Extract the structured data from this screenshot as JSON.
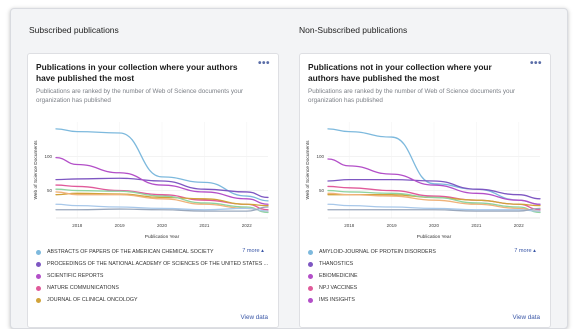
{
  "left": {
    "section_title": "Subscribed publications",
    "card": {
      "title": "Publications in your collection where your authors have published the most",
      "subtitle": "Publications are ranked by the number of Web of Science documents your organization has published",
      "more_label": "7 more ▴",
      "view_data_label": "View data",
      "legend": [
        {
          "label": "ABSTRACTS OF PAPERS OF THE AMERICAN CHEMICAL SOCIETY",
          "color": "#7db9dd"
        },
        {
          "label": "PROCEEDINGS OF THE NATIONAL ACADEMY OF SCIENCES OF THE UNITED STATES ...",
          "color": "#7e57c2"
        },
        {
          "label": "SCIENTIFIC REPORTS",
          "color": "#b34fc8"
        },
        {
          "label": "NATURE COMMUNICATIONS",
          "color": "#e05a9a"
        },
        {
          "label": "JOURNAL OF CLINICAL ONCOLOGY",
          "color": "#d1a33a"
        }
      ]
    }
  },
  "right": {
    "section_title": "Non-Subscribed publications",
    "card": {
      "title": "Publications not in your collection where your authors have published the most",
      "subtitle": "Publications are ranked by the number of Web of Science documents your organization has published",
      "more_label": "7 more ▴",
      "view_data_label": "View data",
      "legend": [
        {
          "label": "AMYLOID-JOURNAL OF PROTEIN DISORDERS",
          "color": "#7db9dd"
        },
        {
          "label": "THANOSTICS",
          "color": "#7e57c2"
        },
        {
          "label": "EBIOMEDICINE",
          "color": "#b34fc8"
        },
        {
          "label": "NPJ VACCINES",
          "color": "#e05a9a"
        },
        {
          "label": "IMS INSIGHTS",
          "color": "#b34fc8"
        }
      ]
    }
  },
  "chart_data": [
    {
      "type": "line",
      "xlabel": "Publication Year",
      "ylabel": "Web of Science Documents",
      "x": [
        2017.5,
        2018,
        2019,
        2020,
        2021,
        2022,
        2022.5
      ],
      "x_ticks": [
        "2018",
        "2019",
        "2020",
        "2021",
        "2022"
      ],
      "x_tick_values": [
        2018,
        2019,
        2020,
        2021,
        2022
      ],
      "y_ticks": [
        50,
        100
      ],
      "ylim": [
        10,
        150
      ],
      "series": [
        {
          "color": "#7db9dd",
          "values": [
            140,
            136,
            134,
            70,
            62,
            42,
            35
          ]
        },
        {
          "color": "#7e57c2",
          "values": [
            66,
            67,
            68,
            64,
            52,
            48,
            40
          ]
        },
        {
          "color": "#b34fc8",
          "values": [
            98,
            88,
            76,
            58,
            48,
            38,
            30
          ]
        },
        {
          "color": "#e05a9a",
          "values": [
            58,
            56,
            50,
            44,
            36,
            30,
            22
          ]
        },
        {
          "color": "#d1a33a",
          "values": [
            44,
            46,
            45,
            40,
            38,
            30,
            28
          ]
        },
        {
          "color": "#8fd3a0",
          "values": [
            52,
            50,
            49,
            42,
            32,
            26,
            18
          ]
        },
        {
          "color": "#f0b27a",
          "values": [
            48,
            44,
            44,
            38,
            30,
            24,
            20
          ]
        },
        {
          "color": "#a8c8ea",
          "values": [
            30,
            28,
            26,
            24,
            22,
            24,
            20
          ]
        },
        {
          "color": "#9aa8bd",
          "values": [
            22,
            22,
            23,
            22,
            20,
            20,
            26
          ]
        }
      ]
    },
    {
      "type": "line",
      "xlabel": "Publication Year",
      "ylabel": "Web of Science Documents",
      "x": [
        2017.5,
        2018,
        2019,
        2020,
        2021,
        2022,
        2022.5
      ],
      "x_ticks": [
        "2018",
        "2019",
        "2020",
        "2021",
        "2022"
      ],
      "x_tick_values": [
        2018,
        2019,
        2020,
        2021,
        2022
      ],
      "y_ticks": [
        50,
        100
      ],
      "ylim": [
        10,
        150
      ],
      "series": [
        {
          "color": "#7db9dd",
          "values": [
            140,
            136,
            128,
            60,
            52,
            36,
            30
          ]
        },
        {
          "color": "#7e57c2",
          "values": [
            64,
            66,
            66,
            64,
            52,
            44,
            38
          ]
        },
        {
          "color": "#b34fc8",
          "values": [
            96,
            86,
            74,
            58,
            46,
            36,
            30
          ]
        },
        {
          "color": "#e05a9a",
          "values": [
            56,
            54,
            50,
            42,
            36,
            30,
            22
          ]
        },
        {
          "color": "#d1a33a",
          "values": [
            44,
            44,
            44,
            40,
            36,
            30,
            28
          ]
        },
        {
          "color": "#8fd3a0",
          "values": [
            50,
            48,
            46,
            40,
            32,
            26,
            18
          ]
        },
        {
          "color": "#f0b27a",
          "values": [
            46,
            44,
            42,
            36,
            30,
            24,
            20
          ]
        },
        {
          "color": "#a8c8ea",
          "values": [
            30,
            28,
            26,
            24,
            22,
            22,
            20
          ]
        },
        {
          "color": "#9aa8bd",
          "values": [
            22,
            22,
            22,
            22,
            20,
            20,
            24
          ]
        }
      ]
    }
  ]
}
